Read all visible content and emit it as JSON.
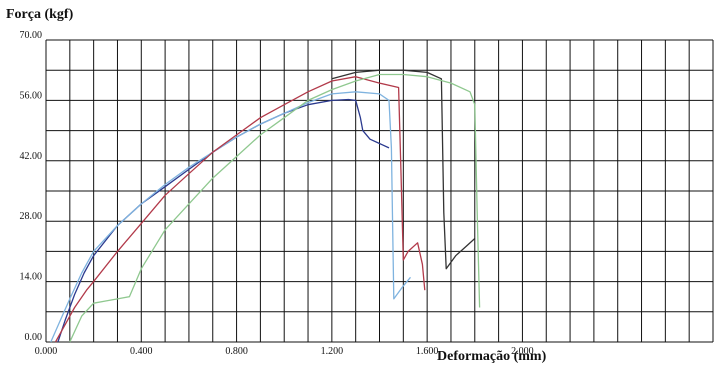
{
  "chart_data": {
    "type": "line",
    "title": "",
    "ylabel": "Força (kgf)",
    "xlabel": "Deformação (mm)",
    "xlim": [
      0,
      2.8
    ],
    "ylim": [
      0,
      70
    ],
    "x_ticks": [
      0,
      0.4,
      0.8,
      1.2,
      1.6,
      2.0
    ],
    "x_tick_labels": [
      "0.000",
      "0.400",
      "0.800",
      "1.200",
      "1.600",
      "2.000"
    ],
    "y_ticks": [
      0,
      14,
      28,
      42,
      56,
      70
    ],
    "y_tick_labels": [
      "0.00",
      "14.00",
      "28.00",
      "42.00",
      "56.00",
      "70.00"
    ],
    "grid": true,
    "series": [
      {
        "color": "#2b3a8f",
        "points": [
          [
            0.05,
            0
          ],
          [
            0.08,
            5
          ],
          [
            0.12,
            11
          ],
          [
            0.16,
            16
          ],
          [
            0.2,
            20
          ],
          [
            0.3,
            27
          ],
          [
            0.4,
            32
          ],
          [
            0.5,
            36
          ],
          [
            0.6,
            40
          ],
          [
            0.7,
            44
          ],
          [
            0.8,
            47.5
          ],
          [
            0.9,
            50.5
          ],
          [
            1.0,
            53
          ],
          [
            1.1,
            55
          ],
          [
            1.2,
            56
          ],
          [
            1.27,
            56.2
          ],
          [
            1.3,
            56
          ],
          [
            1.32,
            52
          ],
          [
            1.33,
            49
          ],
          [
            1.36,
            47
          ],
          [
            1.4,
            46
          ],
          [
            1.44,
            45
          ]
        ]
      },
      {
        "color": "#7fb3df",
        "points": [
          [
            0.02,
            0
          ],
          [
            0.06,
            5
          ],
          [
            0.1,
            10
          ],
          [
            0.15,
            16
          ],
          [
            0.2,
            21
          ],
          [
            0.3,
            27
          ],
          [
            0.4,
            32
          ],
          [
            0.5,
            36.5
          ],
          [
            0.6,
            40.5
          ],
          [
            0.7,
            44
          ],
          [
            0.8,
            47.5
          ],
          [
            0.9,
            50.5
          ],
          [
            1.0,
            53
          ],
          [
            1.1,
            55.5
          ],
          [
            1.2,
            57.5
          ],
          [
            1.3,
            58
          ],
          [
            1.4,
            57.5
          ],
          [
            1.44,
            56
          ],
          [
            1.45,
            45
          ],
          [
            1.46,
            10
          ],
          [
            1.5,
            13
          ],
          [
            1.53,
            15
          ]
        ]
      },
      {
        "color": "#b23a4a",
        "points": [
          [
            0.04,
            0
          ],
          [
            0.08,
            4
          ],
          [
            0.12,
            8
          ],
          [
            0.17,
            12
          ],
          [
            0.2,
            14
          ],
          [
            0.3,
            21
          ],
          [
            0.4,
            27.5
          ],
          [
            0.5,
            34
          ],
          [
            0.6,
            39
          ],
          [
            0.7,
            44
          ],
          [
            0.8,
            48
          ],
          [
            0.9,
            52
          ],
          [
            1.0,
            55
          ],
          [
            1.1,
            58
          ],
          [
            1.2,
            60.5
          ],
          [
            1.3,
            61.5
          ],
          [
            1.4,
            60
          ],
          [
            1.48,
            59
          ],
          [
            1.49,
            40
          ],
          [
            1.5,
            19
          ],
          [
            1.52,
            21
          ],
          [
            1.56,
            23
          ],
          [
            1.58,
            18
          ],
          [
            1.59,
            12
          ]
        ]
      },
      {
        "color": "#333333",
        "points": [
          [
            1.2,
            61
          ],
          [
            1.3,
            62.5
          ],
          [
            1.4,
            63
          ],
          [
            1.5,
            63
          ],
          [
            1.6,
            62.5
          ],
          [
            1.66,
            61
          ],
          [
            1.67,
            30
          ],
          [
            1.68,
            17
          ],
          [
            1.72,
            20
          ],
          [
            1.76,
            22
          ],
          [
            1.8,
            24
          ]
        ]
      },
      {
        "color": "#8fc88f",
        "points": [
          [
            0.1,
            0
          ],
          [
            0.15,
            6
          ],
          [
            0.2,
            9
          ],
          [
            0.25,
            9.5
          ],
          [
            0.3,
            10
          ],
          [
            0.35,
            10.5
          ],
          [
            0.4,
            17
          ],
          [
            0.5,
            26
          ],
          [
            0.6,
            32
          ],
          [
            0.7,
            38
          ],
          [
            0.8,
            43
          ],
          [
            0.9,
            48
          ],
          [
            1.0,
            52
          ],
          [
            1.1,
            56
          ],
          [
            1.2,
            58.5
          ],
          [
            1.3,
            60.5
          ],
          [
            1.4,
            62
          ],
          [
            1.5,
            62
          ],
          [
            1.6,
            61.5
          ],
          [
            1.7,
            60
          ],
          [
            1.78,
            58
          ],
          [
            1.8,
            55
          ],
          [
            1.81,
            30
          ],
          [
            1.82,
            8
          ]
        ]
      }
    ]
  }
}
